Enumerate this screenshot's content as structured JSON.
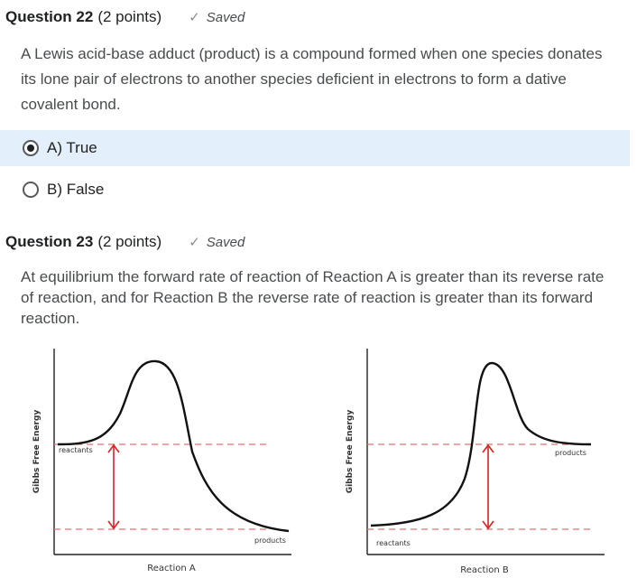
{
  "q22": {
    "title": "Question 22",
    "points": "(2 points)",
    "status": "Saved",
    "text": "A Lewis acid-base adduct (product) is a compound formed when one species donates its lone pair of electrons to another species deficient in electrons to form a dative covalent bond.",
    "options": [
      {
        "label": "A) True",
        "selected": true
      },
      {
        "label": "B) False",
        "selected": false
      }
    ]
  },
  "q23": {
    "title": "Question 23",
    "points": "(2 points)",
    "status": "Saved",
    "text": "At equilibrium the forward rate of reaction of Reaction A is greater than its reverse rate of reaction, and for Reaction B the reverse rate of reaction is greater than its forward reaction."
  },
  "icons": {
    "saved": "check-icon"
  },
  "colors": {
    "selected_bg": "#e3f0fb",
    "arrow": "#e02020",
    "dash": "#e07070"
  },
  "chart_data": [
    {
      "type": "diagram",
      "title": "Reaction A",
      "ylabel": "Gibbs Free Energy",
      "start_label": "reactants",
      "end_label": "products"
    },
    {
      "type": "diagram",
      "title": "Reaction B",
      "ylabel": "Gibbs Free Energy",
      "start_label": "reactants",
      "end_label": "products"
    }
  ]
}
